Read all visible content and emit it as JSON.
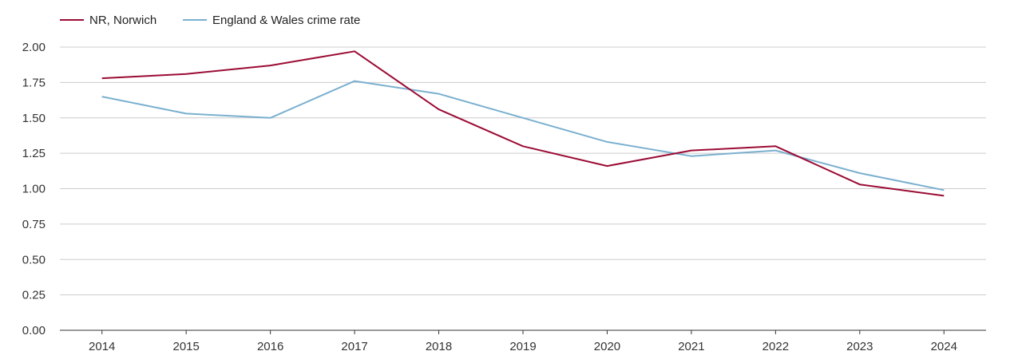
{
  "chart_data": {
    "type": "line",
    "title": "",
    "xlabel": "",
    "ylabel": "",
    "x": [
      "2014",
      "2015",
      "2016",
      "2017",
      "2018",
      "2019",
      "2020",
      "2021",
      "2022",
      "2023",
      "2024"
    ],
    "ylim": [
      0,
      2
    ],
    "yticks": [
      "0.00",
      "0.25",
      "0.50",
      "0.75",
      "1.00",
      "1.25",
      "1.50",
      "1.75",
      "2.00"
    ],
    "grid": true,
    "legend_position": "top-left",
    "series": [
      {
        "name": "NR, Norwich",
        "color": "#9b0b34",
        "values": [
          1.78,
          1.81,
          1.87,
          1.97,
          1.56,
          1.3,
          1.16,
          1.27,
          1.3,
          1.03,
          0.95
        ]
      },
      {
        "name": "England & Wales crime rate",
        "color": "#7ab0cf",
        "values": [
          1.65,
          1.53,
          1.5,
          1.76,
          1.67,
          1.5,
          1.33,
          1.23,
          1.27,
          1.11,
          0.99
        ]
      }
    ]
  }
}
